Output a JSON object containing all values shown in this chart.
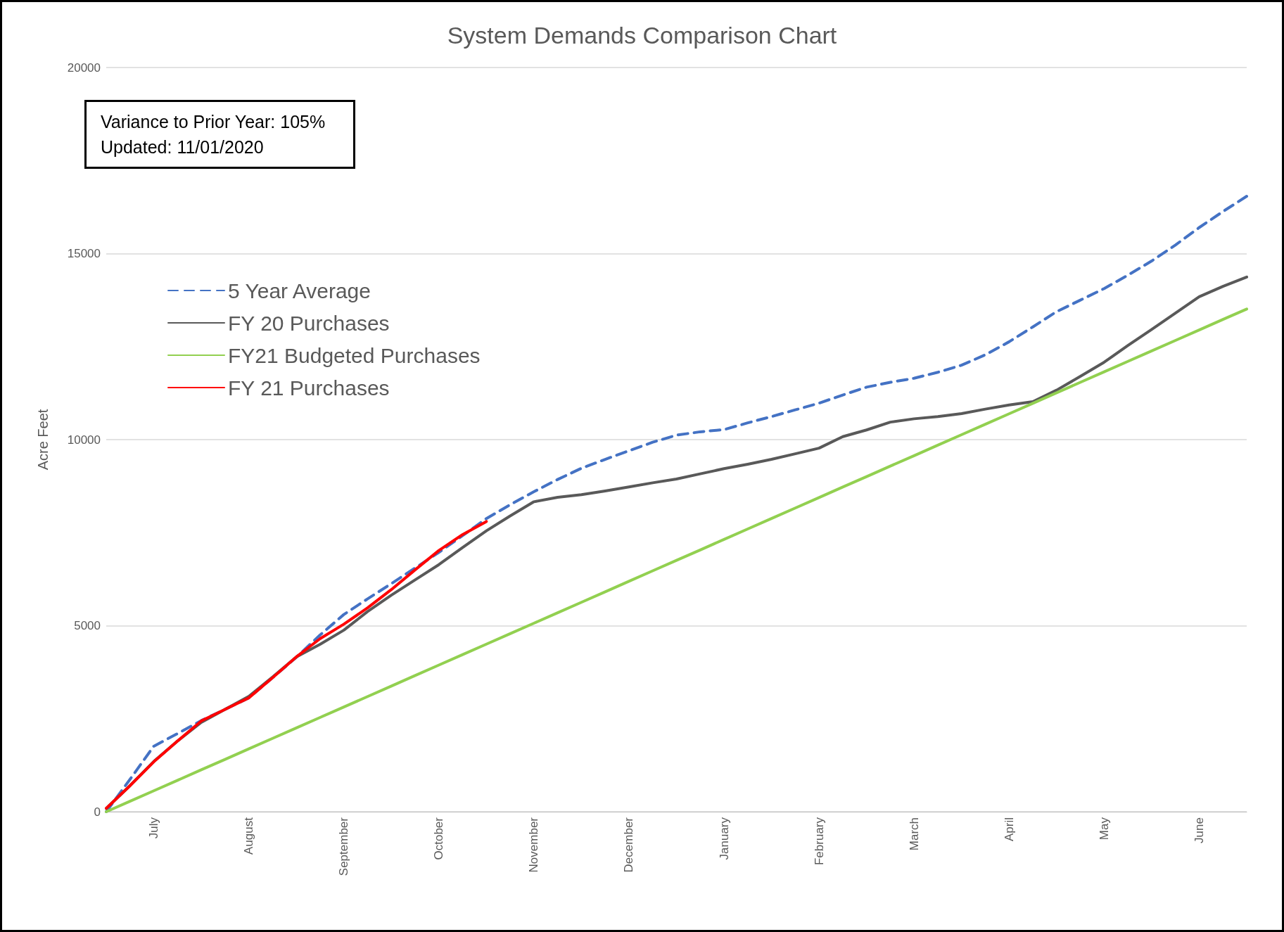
{
  "chart_data": {
    "type": "line",
    "title": "System Demands Comparison Chart",
    "ylabel": "Acre Feet",
    "annotations": [
      "Variance to Prior Year: 105%",
      "Updated: 11/01/2020"
    ],
    "categories": [
      null,
      null,
      "July",
      null,
      null,
      null,
      "August",
      null,
      null,
      null,
      "September",
      null,
      null,
      null,
      "October",
      null,
      null,
      null,
      "November",
      null,
      null,
      null,
      "December",
      null,
      null,
      null,
      "January",
      null,
      null,
      null,
      "February",
      null,
      null,
      null,
      "March",
      null,
      null,
      null,
      "April",
      null,
      null,
      null,
      "May",
      null,
      null,
      null,
      "June",
      null,
      null
    ],
    "ylim": [
      0,
      20000
    ],
    "yticks": [
      0,
      5000,
      10000,
      15000,
      20000
    ],
    "grid": "y",
    "legend": "top left",
    "marker": "none",
    "series": [
      {
        "name": "5 Year Average",
        "color": "#4472c4",
        "line_style": "dashed",
        "values": [
          0,
          870,
          1760,
          2100,
          2450,
          2750,
          3060,
          3600,
          4150,
          4750,
          5300,
          5720,
          6130,
          6550,
          6970,
          7420,
          7880,
          8250,
          8600,
          8930,
          9230,
          9470,
          9700,
          9930,
          10120,
          10210,
          10270,
          10450,
          10620,
          10800,
          10980,
          11200,
          11410,
          11540,
          11650,
          11810,
          12000,
          12280,
          12630,
          13030,
          13440,
          13750,
          14060,
          14420,
          14800,
          15230,
          15700,
          16130,
          16540
        ]
      },
      {
        "name": "FY 20 Purchases",
        "color": "#595959",
        "line_style": "solid",
        "values": [
          90,
          700,
          1350,
          1900,
          2400,
          2750,
          3100,
          3620,
          4160,
          4500,
          4880,
          5380,
          5820,
          6230,
          6640,
          7100,
          7550,
          7950,
          8330,
          8450,
          8520,
          8620,
          8730,
          8840,
          8940,
          9080,
          9220,
          9340,
          9470,
          9620,
          9770,
          10080,
          10260,
          10470,
          10560,
          10620,
          10700,
          10820,
          10930,
          11020,
          11330,
          11700,
          12080,
          12530,
          12960,
          13400,
          13840,
          14120,
          14370
        ]
      },
      {
        "name": "FY21 Budgeted Purchases",
        "color": "#92d050",
        "line_style": "solid",
        "values": [
          0,
          281,
          563,
          844,
          1126,
          1407,
          1689,
          1970,
          2252,
          2533,
          2815,
          3096,
          3378,
          3659,
          3941,
          4222,
          4503,
          4785,
          5066,
          5348,
          5629,
          5911,
          6192,
          6474,
          6755,
          7036,
          7318,
          7599,
          7881,
          8162,
          8444,
          8725,
          9006,
          9288,
          9569,
          9851,
          10132,
          10414,
          10695,
          10977,
          11258,
          11540,
          11821,
          12103,
          12384,
          12666,
          12947,
          13229,
          13510
        ]
      },
      {
        "name": "FY 21 Purchases",
        "color": "#ff0000",
        "line_style": "solid",
        "values": [
          90,
          700,
          1340,
          1900,
          2440,
          2750,
          3060,
          3600,
          4160,
          4650,
          5040,
          5480,
          5970,
          6500,
          7020,
          7450,
          7800,
          null,
          null,
          null,
          null,
          null,
          null,
          null,
          null,
          null,
          null,
          null,
          null,
          null,
          null,
          null,
          null,
          null,
          null,
          null,
          null,
          null,
          null,
          null,
          null,
          null,
          null,
          null,
          null,
          null,
          null,
          null,
          null
        ]
      }
    ]
  }
}
